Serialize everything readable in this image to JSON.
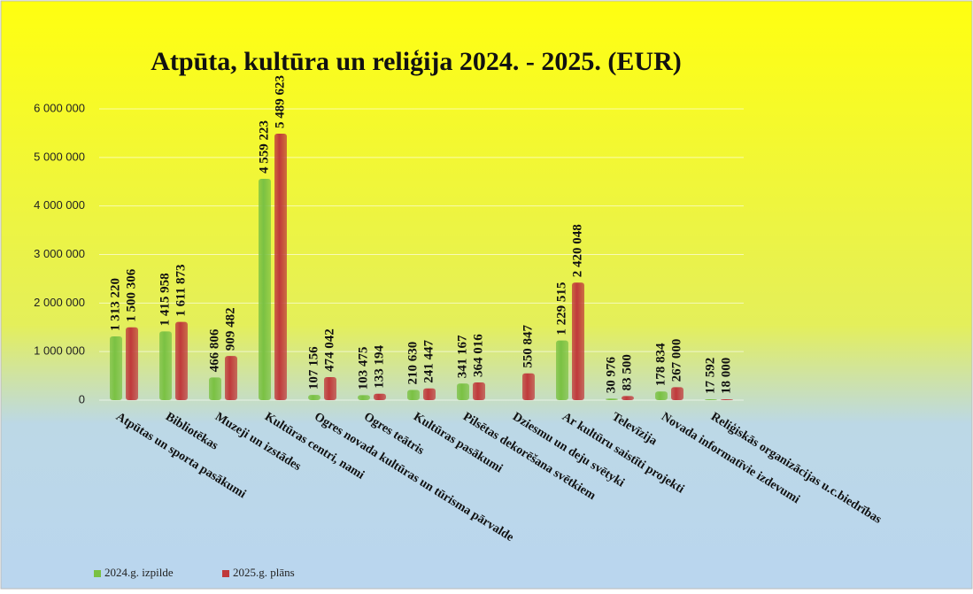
{
  "chart_data": {
    "type": "bar",
    "title": "Atpūta, kultūra un reliģija 2024. - 2025. (EUR)",
    "categories": [
      "Atpūtas un sporta  pasākumi",
      "Bibliotēkas",
      "Muzeji un izstādes",
      "Kultūras centri, nami",
      "Ogres novada kultūras un tūrisma pārvalde",
      "Ogres teātris",
      "Kultūras pasākumi",
      "Pilsētas dekorēšana svētkiem",
      "Dziesmu un deju svētyki",
      "Ar kultūru saistīti projekti",
      "Televīzija",
      "Novada informatīvie izdevumi",
      "Reliģiskās organizācijas u.c.biedrības"
    ],
    "series": [
      {
        "name": "2024.g. izpilde",
        "color": "#7ac143",
        "values": [
          1313220,
          1415958,
          466806,
          4559223,
          107156,
          103475,
          210630,
          341167,
          null,
          1229515,
          30976,
          178834,
          17592
        ],
        "value_labels": [
          "1 313 220",
          "1 415 958",
          "466 806",
          "4 559 223",
          "107 156",
          "103 475",
          "210 630",
          "341 167",
          null,
          "1 229 515",
          "30 976",
          "178 834",
          "17 592"
        ]
      },
      {
        "name": "2025.g. plāns",
        "color": "#c0393b",
        "values": [
          1500306,
          1611873,
          909482,
          5489623,
          474042,
          133194,
          241447,
          364016,
          550847,
          2420048,
          83500,
          267000,
          18000
        ],
        "value_labels": [
          "1 500 306",
          "1 611 873",
          "909 482",
          "5 489 623",
          "474 042",
          "133 194",
          "241 447",
          "364 016",
          "550 847",
          "2 420 048",
          "83 500",
          "267 000",
          "18 000"
        ]
      }
    ],
    "ylim": [
      0,
      6000000
    ],
    "yticks": [
      0,
      {
        "value": 1000000,
        "label": "1 000 000"
      },
      {
        "value": 2000000,
        "label": "2 000 000"
      },
      {
        "value": 3000000,
        "label": "3 000 000"
      },
      {
        "value": 4000000,
        "label": "4 000 000"
      },
      {
        "value": 5000000,
        "label": "5 000 000"
      },
      {
        "value": 6000000,
        "label": "6 000 000"
      }
    ],
    "grid": true,
    "legend": "bottom-left"
  }
}
